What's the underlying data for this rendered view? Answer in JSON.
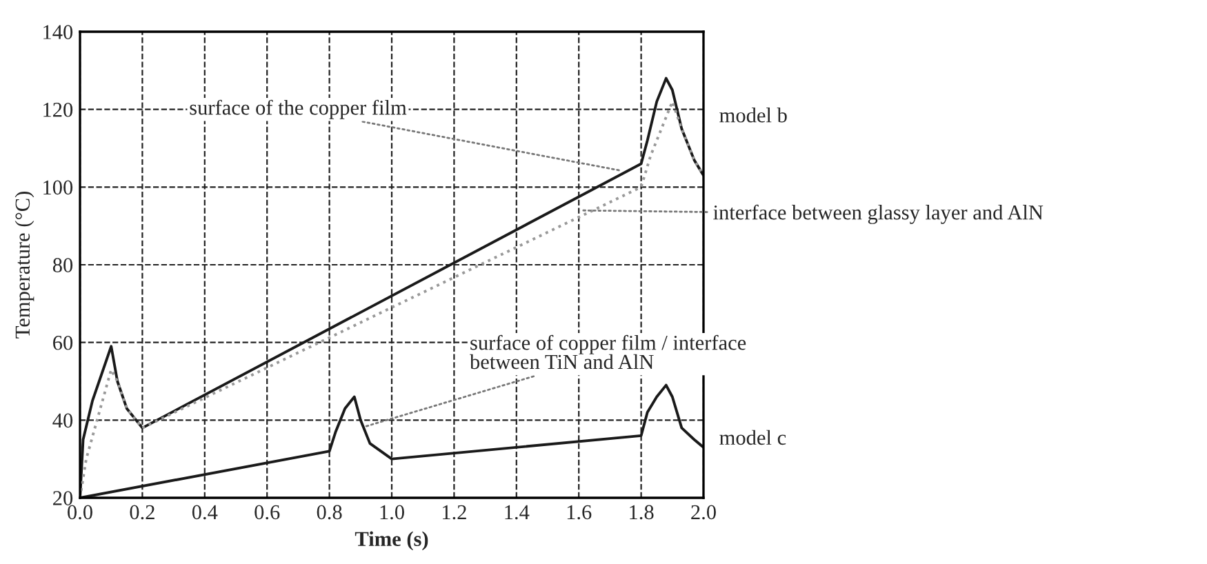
{
  "chart_data": {
    "type": "line",
    "xlabel": "Time (s)",
    "ylabel": "Temperature (°C)",
    "xlim": [
      0,
      2.0
    ],
    "ylim": [
      20,
      140
    ],
    "xticks": [
      {
        "value": 0,
        "label": "0.0"
      },
      0.2,
      0.4,
      0.6,
      0.8,
      {
        "value": 1.0,
        "label": "1.0"
      },
      1.2,
      1.4,
      1.6,
      1.8,
      {
        "value": 2.0,
        "label": "2.0"
      }
    ],
    "yticks": [
      20,
      40,
      60,
      80,
      100,
      120,
      140
    ],
    "grid": true,
    "line_style": "solid",
    "series": [
      {
        "color": "#1a1a1a",
        "x": [
          0,
          0.01,
          0.04,
          0.1,
          0.12,
          0.15,
          0.2,
          1.8,
          1.82,
          1.85,
          1.88,
          1.9,
          1.93,
          1.97,
          2.0
        ],
        "values": [
          20,
          35,
          45,
          59,
          50,
          43,
          38,
          106,
          112,
          122,
          128,
          125,
          115,
          107,
          103
        ]
      },
      {
        "color": "#999999",
        "line_style": "dotted",
        "x": [
          0,
          0.02,
          0.1,
          0.12,
          0.15,
          0.2,
          1.8,
          1.83,
          1.9,
          1.93,
          1.97,
          2.0
        ],
        "values": [
          20,
          30,
          53,
          50,
          43,
          38,
          100,
          108,
          122,
          115,
          107,
          103
        ]
      },
      {
        "color": "#1a1a1a",
        "x": [
          0,
          0.8,
          0.82,
          0.85,
          0.88,
          0.9,
          0.93,
          1.0,
          1.8,
          1.82,
          1.85,
          1.88,
          1.9,
          1.93,
          1.97,
          2.0
        ],
        "values": [
          20,
          32,
          37,
          43,
          46,
          40,
          34,
          30,
          36,
          42,
          46,
          49,
          46,
          38,
          35,
          33
        ]
      }
    ],
    "annotations": [
      {
        "text": "surface of the copper film",
        "x": 1.75,
        "y": 104
      },
      {
        "text": "interface between glassy layer and AlN",
        "x": 1.6,
        "y": 94
      },
      {
        "text": "surface of copper film / interface\nbetween TiN and AlN",
        "x": 0.9,
        "y": 38
      },
      "model b",
      "model c"
    ]
  }
}
